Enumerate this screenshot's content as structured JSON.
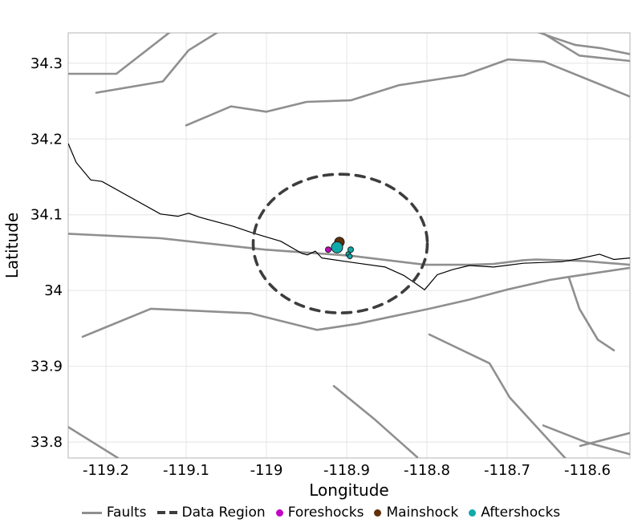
{
  "colors": {
    "faults": "#8f8f8f",
    "fault_black": "#000000",
    "data_region": "#3d3d3d",
    "foreshocks": "#c303c3",
    "mainshock": "#60300c",
    "aftershocks": "#10aaaa",
    "grid": "#e9e9e9",
    "frame": "#c9c9c9",
    "text": "#000000"
  },
  "legend": {
    "items": [
      {
        "key": "faults",
        "label": "Faults",
        "swatch": "line"
      },
      {
        "key": "data_region",
        "label": "Data Region",
        "swatch": "dash"
      },
      {
        "key": "foreshocks",
        "label": "Foreshocks",
        "swatch": "dot"
      },
      {
        "key": "mainshock",
        "label": "Mainshock",
        "swatch": "dot"
      },
      {
        "key": "aftershocks",
        "label": "Aftershocks",
        "swatch": "dot"
      }
    ]
  },
  "chart_data": {
    "type": "scatter",
    "title": "",
    "xlabel": "Longitude",
    "ylabel": "Latitude",
    "xlim": [
      -119.247,
      -118.547
    ],
    "ylim": [
      33.779,
      34.34
    ],
    "grid": true,
    "legend_position": "bottom",
    "xticks": {
      "values": [
        -119.2,
        -119.1,
        -119.0,
        -118.9,
        -118.8,
        -118.7,
        -118.6
      ],
      "labels": [
        "-119.2",
        "-119.1",
        "-119",
        "-118.9",
        "-118.8",
        "-118.7",
        "-118.6"
      ]
    },
    "yticks": {
      "values": [
        33.8,
        33.9,
        34.0,
        34.1,
        34.2,
        34.3
      ],
      "labels": [
        "33.8",
        "33.9",
        "34",
        "34.1",
        "34.2",
        "34.3"
      ]
    },
    "faults": [
      [
        [
          -119.247,
          34.286
        ],
        [
          -119.187,
          34.286
        ],
        [
          -119.119,
          34.342
        ]
      ],
      [
        [
          -119.212,
          34.261
        ],
        [
          -119.129,
          34.276
        ],
        [
          -119.097,
          34.317
        ],
        [
          -119.059,
          34.342
        ]
      ],
      [
        [
          -119.1,
          34.218
        ],
        [
          -119.044,
          34.243
        ],
        [
          -119.0,
          34.236
        ],
        [
          -118.95,
          34.249
        ],
        [
          -118.895,
          34.251
        ],
        [
          -118.835,
          34.271
        ],
        [
          -118.754,
          34.284
        ],
        [
          -118.699,
          34.305
        ],
        [
          -118.654,
          34.302
        ],
        [
          -118.547,
          34.256
        ]
      ],
      [
        [
          -118.664,
          34.342
        ],
        [
          -118.643,
          34.334
        ],
        [
          -118.615,
          34.324
        ],
        [
          -118.584,
          34.32
        ],
        [
          -118.547,
          34.312
        ]
      ],
      [
        [
          -118.656,
          34.34
        ],
        [
          -118.61,
          34.31
        ],
        [
          -118.547,
          34.303
        ]
      ],
      [
        [
          -119.247,
          34.075
        ],
        [
          -119.132,
          34.069
        ],
        [
          -119.002,
          34.054
        ],
        [
          -118.895,
          34.046
        ],
        [
          -118.802,
          34.034
        ],
        [
          -118.747,
          34.034
        ],
        [
          -118.717,
          34.035
        ],
        [
          -118.68,
          34.04
        ],
        [
          -118.664,
          34.041
        ],
        [
          -118.604,
          34.039
        ],
        [
          -118.547,
          34.034
        ]
      ],
      [
        [
          -119.229,
          33.939
        ],
        [
          -119.144,
          33.976
        ],
        [
          -119.02,
          33.97
        ],
        [
          -118.937,
          33.948
        ],
        [
          -118.887,
          33.956
        ],
        [
          -118.847,
          33.965
        ],
        [
          -118.797,
          33.976
        ],
        [
          -118.747,
          33.988
        ],
        [
          -118.697,
          34.002
        ],
        [
          -118.647,
          34.014
        ],
        [
          -118.623,
          34.018
        ],
        [
          -118.547,
          34.03
        ]
      ],
      [
        [
          -118.623,
          34.017
        ],
        [
          -118.61,
          33.976
        ],
        [
          -118.587,
          33.935
        ],
        [
          -118.567,
          33.921
        ]
      ],
      [
        [
          -119.247,
          33.82
        ],
        [
          -119.185,
          33.779
        ]
      ],
      [
        [
          -118.797,
          33.942
        ],
        [
          -118.722,
          33.904
        ],
        [
          -118.697,
          33.859
        ],
        [
          -118.627,
          33.778
        ]
      ],
      [
        [
          -118.916,
          33.874
        ],
        [
          -118.864,
          33.829
        ],
        [
          -118.812,
          33.78
        ]
      ],
      [
        [
          -118.655,
          33.822
        ],
        [
          -118.602,
          33.8
        ],
        [
          -118.547,
          33.784
        ]
      ],
      [
        [
          -118.609,
          33.795
        ],
        [
          -118.547,
          33.812
        ]
      ]
    ],
    "fault_thin": [
      [
        [
          -119.247,
          34.194
        ],
        [
          -119.237,
          34.169
        ],
        [
          -119.219,
          34.146
        ],
        [
          -119.205,
          34.144
        ],
        [
          -119.132,
          34.101
        ],
        [
          -119.11,
          34.098
        ],
        [
          -119.097,
          34.102
        ],
        [
          -119.084,
          34.097
        ],
        [
          -119.042,
          34.085
        ],
        [
          -119.017,
          34.076
        ],
        [
          -118.982,
          34.065
        ],
        [
          -118.956,
          34.049
        ],
        [
          -118.949,
          34.047
        ],
        [
          -118.939,
          34.052
        ],
        [
          -118.931,
          34.043
        ],
        [
          -118.892,
          34.037
        ],
        [
          -118.852,
          34.031
        ],
        [
          -118.829,
          34.02
        ],
        [
          -118.815,
          34.01
        ],
        [
          -118.803,
          34.001
        ],
        [
          -118.787,
          34.021
        ],
        [
          -118.767,
          34.028
        ],
        [
          -118.747,
          34.033
        ],
        [
          -118.717,
          34.031
        ],
        [
          -118.68,
          34.036
        ],
        [
          -118.632,
          34.038
        ],
        [
          -118.61,
          34.042
        ],
        [
          -118.585,
          34.048
        ],
        [
          -118.567,
          34.041
        ],
        [
          -118.547,
          34.043
        ]
      ]
    ],
    "data_region": {
      "center_lon": -118.908,
      "center_lat": 34.062,
      "radius_lon": 0.1085,
      "radius_lat": 0.0915
    },
    "foreshocks": [
      {
        "lon": -118.923,
        "lat": 34.054,
        "r": 3.5
      }
    ],
    "mainshock": [
      {
        "lon": -118.909,
        "lat": 34.064,
        "r": 6
      }
    ],
    "aftershocks": [
      {
        "lon": -118.912,
        "lat": 34.057,
        "r": 7
      },
      {
        "lon": -118.895,
        "lat": 34.054,
        "r": 3.5
      },
      {
        "lon": -118.898,
        "lat": 34.048,
        "r": 3
      },
      {
        "lon": -118.896,
        "lat": 34.045,
        "r": 3
      }
    ]
  }
}
